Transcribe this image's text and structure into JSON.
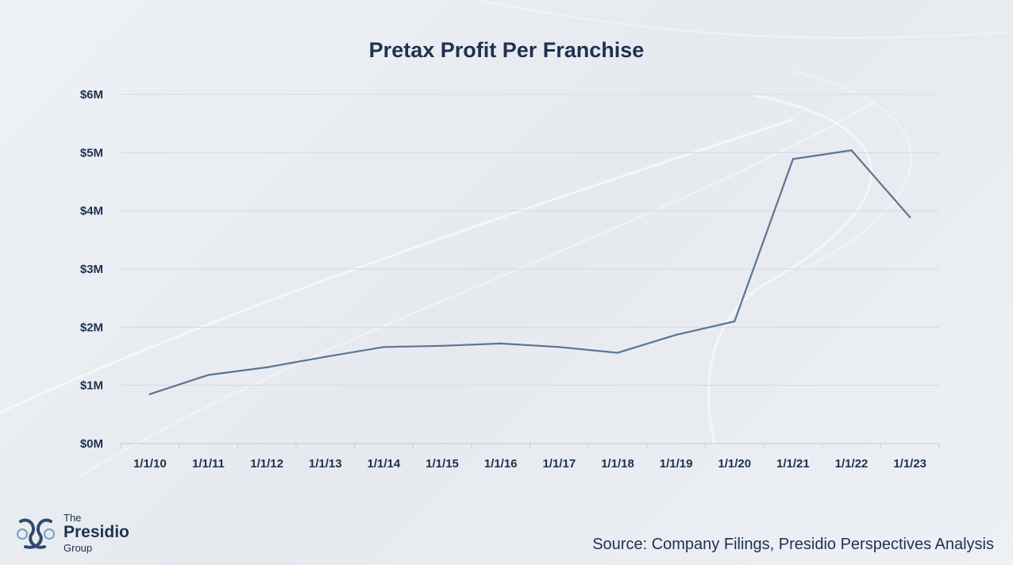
{
  "chart_data": {
    "type": "line",
    "title": "Pretax Profit Per Franchise",
    "xlabel": "",
    "ylabel": "",
    "categories": [
      "1/1/10",
      "1/1/11",
      "1/1/12",
      "1/1/13",
      "1/1/14",
      "1/1/15",
      "1/1/16",
      "1/1/17",
      "1/1/18",
      "1/1/19",
      "1/1/20",
      "1/1/21",
      "1/1/22",
      "1/1/23"
    ],
    "y_tick_labels": [
      "$0M",
      "$1M",
      "$2M",
      "$3M",
      "$4M",
      "$5M",
      "$6M"
    ],
    "ylim": [
      0,
      6
    ],
    "grid": true,
    "legend": "none",
    "series": [
      {
        "values": [
          0.85,
          1.18,
          1.31,
          1.49,
          1.66,
          1.68,
          1.72,
          1.66,
          1.56,
          1.87,
          2.1,
          4.89,
          5.04,
          3.89
        ]
      }
    ],
    "colors": {
      "line": "#5a7595",
      "grid": "#d3d9e1",
      "text": "#1e3150"
    }
  },
  "footer": {
    "source": "Source: Company Filings, Presidio Perspectives Analysis",
    "logo_the": "The",
    "logo_main": "Presidio",
    "logo_group": "Group"
  }
}
